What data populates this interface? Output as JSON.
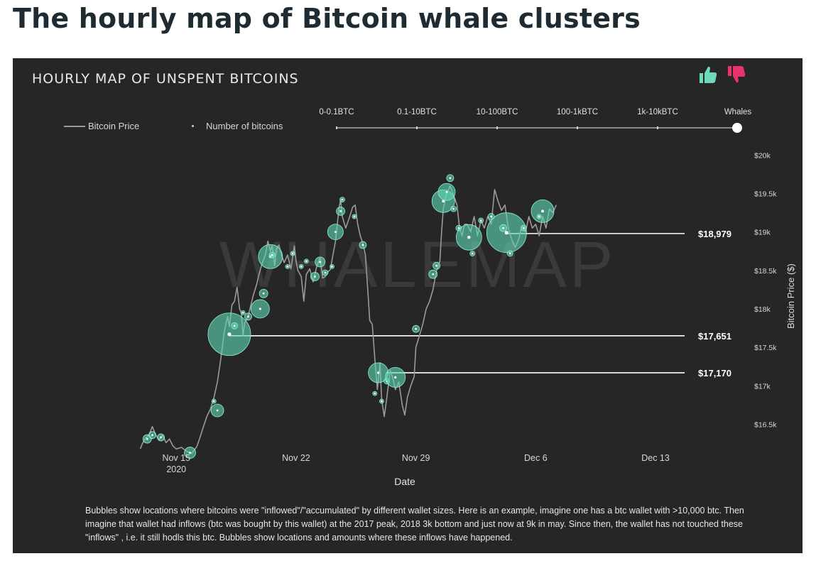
{
  "page_title": "The hourly map of Bitcoin whale clusters",
  "chart_title": "HOURLY MAP OF UNSPENT BITCOINS",
  "legend": {
    "price": "Bitcoin Price",
    "bubbles": "Number of bitcoins"
  },
  "wallet_filter": {
    "options": [
      "0-0.1BTC",
      "0.1-10BTC",
      "10-100BTC",
      "100-1kBTC",
      "1k-10kBTC",
      "Whales"
    ],
    "selected": "Whales"
  },
  "icons": {
    "thumbs_up": "thumbs-up-icon",
    "thumbs_down": "thumbs-down-icon"
  },
  "watermark": "WHALEMAP",
  "description": "Bubbles show locations where bitcoins were \"inflowed\"/\"accumulated\" by different wallet sizes. Here is an example, imagine one has a btc wallet with >10,000 btc. Then imagine that wallet had inflows (btc was bought by this wallet) at the 2017 peak, 2018 3k bottom and just now at 9k in may. Since then, the wallet has not touched these \"inflows\" , i.e. it still hodls this btc. Bubbles show locations and amounts where these inflows have happened.",
  "colors": {
    "background": "#262626",
    "price_line": "#9a9a9a",
    "bubble": "#5fd6b4",
    "level_line": "#ffffff",
    "thumbs_up": "#6fd9bd",
    "thumbs_down": "#e8336b"
  },
  "chart_data": {
    "type": "scatter",
    "xlabel": "Date",
    "ylabel": "Bitcoin Price ($)",
    "x_ticks": [
      {
        "day": 15,
        "label": "Nov 15",
        "sublabel": "2020"
      },
      {
        "day": 22,
        "label": "Nov 22",
        "sublabel": ""
      },
      {
        "day": 29,
        "label": "Nov 29",
        "sublabel": ""
      },
      {
        "day": 36,
        "label": "Dec 6",
        "sublabel": ""
      },
      {
        "day": 43,
        "label": "Dec 13",
        "sublabel": ""
      }
    ],
    "y_ticks": [
      {
        "value": 16500,
        "label": "$16.5k"
      },
      {
        "value": 17000,
        "label": "$17k"
      },
      {
        "value": 17500,
        "label": "$17.5k"
      },
      {
        "value": 18000,
        "label": "$18k"
      },
      {
        "value": 18500,
        "label": "$18.5k"
      },
      {
        "value": 19000,
        "label": "$19k"
      },
      {
        "value": 19500,
        "label": "$19.5k"
      },
      {
        "value": 20000,
        "label": "$20k"
      }
    ],
    "xlim_day": [
      12.5,
      44.7
    ],
    "ylim": [
      16200,
      20150
    ],
    "price_series": [
      [
        12.9,
        16180
      ],
      [
        13.0,
        16240
      ],
      [
        13.2,
        16320
      ],
      [
        13.4,
        16360
      ],
      [
        13.6,
        16470
      ],
      [
        13.8,
        16360
      ],
      [
        14.0,
        16300
      ],
      [
        14.2,
        16360
      ],
      [
        14.4,
        16260
      ],
      [
        14.6,
        16310
      ],
      [
        14.8,
        16220
      ],
      [
        15.0,
        16180
      ],
      [
        15.3,
        16200
      ],
      [
        15.6,
        16150
      ],
      [
        15.9,
        16120
      ],
      [
        16.2,
        16210
      ],
      [
        16.4,
        16340
      ],
      [
        16.6,
        16480
      ],
      [
        16.8,
        16610
      ],
      [
        17.0,
        16700
      ],
      [
        17.2,
        16850
      ],
      [
        17.4,
        17050
      ],
      [
        17.6,
        17350
      ],
      [
        17.8,
        17700
      ],
      [
        18.0,
        17900
      ],
      [
        18.1,
        17770
      ],
      [
        18.25,
        18050
      ],
      [
        18.4,
        18100
      ],
      [
        18.55,
        18280
      ],
      [
        18.7,
        18000
      ],
      [
        18.8,
        17950
      ],
      [
        18.9,
        17650
      ],
      [
        19.0,
        17820
      ],
      [
        19.2,
        17900
      ],
      [
        19.3,
        18000
      ],
      [
        19.5,
        18180
      ],
      [
        19.7,
        18320
      ],
      [
        19.8,
        18420
      ],
      [
        20.0,
        18580
      ],
      [
        20.2,
        18700
      ],
      [
        20.35,
        18880
      ],
      [
        20.5,
        18750
      ],
      [
        20.6,
        18820
      ],
      [
        20.75,
        18560
      ],
      [
        20.85,
        18780
      ],
      [
        21.0,
        18830
      ],
      [
        21.15,
        18700
      ],
      [
        21.3,
        18600
      ],
      [
        21.5,
        18700
      ],
      [
        21.7,
        18520
      ],
      [
        21.9,
        18820
      ],
      [
        22.0,
        18620
      ],
      [
        22.1,
        18500
      ],
      [
        22.3,
        18420
      ],
      [
        22.45,
        18100
      ],
      [
        22.6,
        18450
      ],
      [
        22.8,
        18520
      ],
      [
        23.0,
        18350
      ],
      [
        23.2,
        18550
      ],
      [
        23.4,
        18670
      ],
      [
        23.55,
        18400
      ],
      [
        23.7,
        18420
      ],
      [
        23.85,
        18480
      ],
      [
        24.0,
        18510
      ],
      [
        24.15,
        18700
      ],
      [
        24.3,
        18880
      ],
      [
        24.5,
        19300
      ],
      [
        24.6,
        19420
      ],
      [
        24.7,
        19200
      ],
      [
        24.9,
        19050
      ],
      [
        25.1,
        19180
      ],
      [
        25.3,
        19320
      ],
      [
        25.45,
        19350
      ],
      [
        25.6,
        19100
      ],
      [
        25.75,
        18950
      ],
      [
        25.9,
        18850
      ],
      [
        26.05,
        18700
      ],
      [
        26.2,
        18200
      ],
      [
        26.3,
        17850
      ],
      [
        26.45,
        17800
      ],
      [
        26.6,
        17350
      ],
      [
        26.75,
        16950
      ],
      [
        26.9,
        17300
      ],
      [
        27.0,
        16820
      ],
      [
        27.15,
        16600
      ],
      [
        27.3,
        16850
      ],
      [
        27.5,
        17200
      ],
      [
        27.65,
        17100
      ],
      [
        27.8,
        16950
      ],
      [
        28.0,
        17050
      ],
      [
        28.2,
        16750
      ],
      [
        28.35,
        16620
      ],
      [
        28.5,
        16850
      ],
      [
        28.7,
        17000
      ],
      [
        28.9,
        17120
      ],
      [
        29.0,
        17500
      ],
      [
        29.2,
        17650
      ],
      [
        29.4,
        17800
      ],
      [
        29.6,
        18000
      ],
      [
        29.8,
        18100
      ],
      [
        30.0,
        18250
      ],
      [
        30.2,
        18500
      ],
      [
        30.4,
        18620
      ],
      [
        30.5,
        19000
      ],
      [
        30.6,
        19300
      ],
      [
        30.8,
        19500
      ],
      [
        31.0,
        19600
      ],
      [
        31.2,
        19480
      ],
      [
        31.4,
        19350
      ],
      [
        31.55,
        19050
      ],
      [
        31.7,
        18950
      ],
      [
        31.85,
        19100
      ],
      [
        32.0,
        19100
      ],
      [
        32.2,
        19000
      ],
      [
        32.4,
        19200
      ],
      [
        32.6,
        18950
      ],
      [
        32.8,
        19150
      ],
      [
        33.0,
        19050
      ],
      [
        33.2,
        19200
      ],
      [
        33.4,
        19100
      ],
      [
        33.6,
        19550
      ],
      [
        33.8,
        19400
      ],
      [
        34.0,
        19280
      ],
      [
        34.2,
        19350
      ],
      [
        34.4,
        19050
      ],
      [
        34.6,
        18900
      ],
      [
        34.8,
        18800
      ],
      [
        35.0,
        18900
      ],
      [
        35.2,
        19080
      ],
      [
        35.4,
        19000
      ],
      [
        35.6,
        19200
      ],
      [
        35.8,
        19050
      ],
      [
        36.0,
        19100
      ],
      [
        36.2,
        18950
      ],
      [
        36.4,
        19200
      ],
      [
        36.6,
        19050
      ],
      [
        36.8,
        19300
      ],
      [
        37.0,
        19250
      ],
      [
        37.2,
        19350
      ]
    ],
    "bubbles": [
      {
        "day": 13.3,
        "price": 16310,
        "size": 12
      },
      {
        "day": 13.6,
        "price": 16360,
        "size": 10
      },
      {
        "day": 14.1,
        "price": 16330,
        "size": 10
      },
      {
        "day": 15.8,
        "price": 16130,
        "size": 16
      },
      {
        "day": 17.4,
        "price": 16680,
        "size": 18
      },
      {
        "day": 17.2,
        "price": 16800,
        "size": 6
      },
      {
        "day": 18.1,
        "price": 17670,
        "size": 60
      },
      {
        "day": 18.4,
        "price": 17780,
        "size": 9
      },
      {
        "day": 18.9,
        "price": 17950,
        "size": 6
      },
      {
        "day": 19.2,
        "price": 17900,
        "size": 10
      },
      {
        "day": 19.9,
        "price": 18000,
        "size": 26
      },
      {
        "day": 20.1,
        "price": 18200,
        "size": 12
      },
      {
        "day": 20.5,
        "price": 18680,
        "size": 34
      },
      {
        "day": 20.6,
        "price": 18700,
        "size": 8
      },
      {
        "day": 21.5,
        "price": 18550,
        "size": 6
      },
      {
        "day": 21.8,
        "price": 18720,
        "size": 6
      },
      {
        "day": 22.3,
        "price": 18550,
        "size": 6
      },
      {
        "day": 22.6,
        "price": 18620,
        "size": 6
      },
      {
        "day": 23.1,
        "price": 18420,
        "size": 12
      },
      {
        "day": 23.4,
        "price": 18610,
        "size": 14
      },
      {
        "day": 23.7,
        "price": 18470,
        "size": 8
      },
      {
        "day": 24.1,
        "price": 18550,
        "size": 6
      },
      {
        "day": 24.6,
        "price": 19270,
        "size": 12
      },
      {
        "day": 24.3,
        "price": 19000,
        "size": 22
      },
      {
        "day": 24.7,
        "price": 19420,
        "size": 7
      },
      {
        "day": 25.4,
        "price": 19200,
        "size": 6
      },
      {
        "day": 25.9,
        "price": 18830,
        "size": 10
      },
      {
        "day": 26.8,
        "price": 17170,
        "size": 28
      },
      {
        "day": 27.3,
        "price": 17060,
        "size": 8
      },
      {
        "day": 27.8,
        "price": 17110,
        "size": 28
      },
      {
        "day": 26.6,
        "price": 16900,
        "size": 6
      },
      {
        "day": 27.0,
        "price": 16800,
        "size": 6
      },
      {
        "day": 29.0,
        "price": 17740,
        "size": 10
      },
      {
        "day": 30.0,
        "price": 18450,
        "size": 12
      },
      {
        "day": 30.2,
        "price": 18560,
        "size": 10
      },
      {
        "day": 30.6,
        "price": 19400,
        "size": 32
      },
      {
        "day": 30.8,
        "price": 19520,
        "size": 24
      },
      {
        "day": 31.0,
        "price": 19700,
        "size": 10
      },
      {
        "day": 31.2,
        "price": 19300,
        "size": 8
      },
      {
        "day": 31.5,
        "price": 19050,
        "size": 8
      },
      {
        "day": 32.1,
        "price": 18930,
        "size": 36
      },
      {
        "day": 32.3,
        "price": 18720,
        "size": 7
      },
      {
        "day": 32.8,
        "price": 19150,
        "size": 7
      },
      {
        "day": 33.4,
        "price": 19200,
        "size": 9
      },
      {
        "day": 34.3,
        "price": 18990,
        "size": 56
      },
      {
        "day": 34.1,
        "price": 19050,
        "size": 10
      },
      {
        "day": 34.5,
        "price": 18720,
        "size": 8
      },
      {
        "day": 35.3,
        "price": 19050,
        "size": 8
      },
      {
        "day": 36.4,
        "price": 19270,
        "size": 32
      },
      {
        "day": 36.2,
        "price": 19200,
        "size": 6
      }
    ],
    "levels": [
      {
        "price": 18979,
        "label": "$18,979",
        "from_day": 34.2
      },
      {
        "price": 17651,
        "label": "$17,651",
        "from_day": 18.1
      },
      {
        "price": 17170,
        "label": "$17,170",
        "from_day": 27.3
      }
    ]
  }
}
